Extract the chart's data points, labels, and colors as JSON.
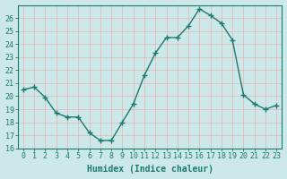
{
  "x": [
    0,
    1,
    2,
    3,
    4,
    5,
    6,
    7,
    8,
    9,
    10,
    11,
    12,
    13,
    14,
    15,
    16,
    17,
    18,
    19,
    20,
    21,
    22,
    23
  ],
  "y": [
    20.5,
    20.7,
    19.9,
    18.7,
    18.4,
    18.4,
    17.2,
    16.6,
    16.6,
    18.0,
    19.4,
    21.6,
    23.3,
    24.5,
    24.5,
    25.4,
    26.7,
    26.2,
    25.6,
    24.3,
    20.1,
    19.4,
    19.0,
    19.3
  ],
  "line_color": "#1a7a6e",
  "marker": "+",
  "marker_size": 4,
  "linewidth": 1.0,
  "bg_color": "#cce8e8",
  "grid_color": "#e8b4b4",
  "xlabel": "Humidex (Indice chaleur)",
  "ylim": [
    16,
    27
  ],
  "xlim": [
    -0.5,
    23.5
  ],
  "yticks": [
    16,
    17,
    18,
    19,
    20,
    21,
    22,
    23,
    24,
    25,
    26
  ],
  "xticks": [
    0,
    1,
    2,
    3,
    4,
    5,
    6,
    7,
    8,
    9,
    10,
    11,
    12,
    13,
    14,
    15,
    16,
    17,
    18,
    19,
    20,
    21,
    22,
    23
  ],
  "tick_color": "#1a7a6e",
  "label_fontsize": 7,
  "tick_fontsize": 6,
  "linestyle": "-"
}
